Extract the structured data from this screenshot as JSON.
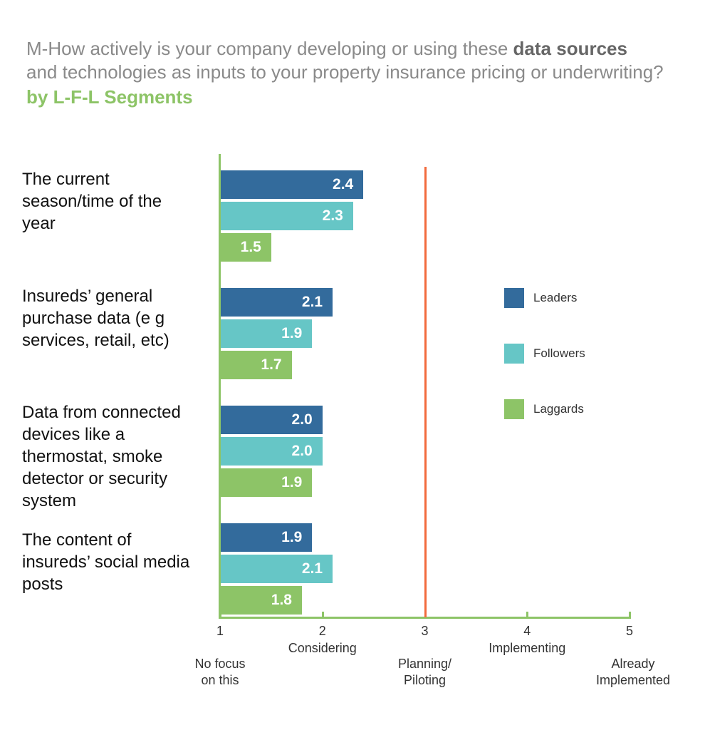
{
  "title": {
    "prefix": "M-How actively is your company developing or using these ",
    "emphasis": "data sources",
    "line2": "and technologies as inputs to your property insurance pricing or underwriting?",
    "subtitle": "by L-F-L Segments"
  },
  "colors": {
    "leaders": "#336b9c",
    "followers": "#66c6c6",
    "laggards": "#8dc467",
    "axis": "#8dc467",
    "reference": "#f26a3d",
    "subtitle": "#8dc467"
  },
  "chart_data": {
    "type": "bar",
    "orientation": "horizontal",
    "categories": [
      [
        "The current",
        "season/time of the",
        "year"
      ],
      [
        "Insureds’ general",
        "purchase data (e g",
        "services, retail, etc)"
      ],
      [
        "Data from connected",
        "devices like a",
        "thermostat, smoke",
        "detector or security",
        "system"
      ],
      [
        "The content of",
        "insureds’ social media",
        "posts"
      ]
    ],
    "series": [
      {
        "name": "Leaders",
        "values": [
          2.4,
          2.1,
          2.0,
          1.9
        ]
      },
      {
        "name": "Followers",
        "values": [
          2.3,
          1.9,
          2.0,
          2.1
        ]
      },
      {
        "name": "Laggards",
        "values": [
          1.5,
          1.7,
          1.9,
          1.8
        ]
      }
    ],
    "value_labels": [
      [
        "2.4",
        "2.1",
        "2.0",
        "1.9"
      ],
      [
        "2.3",
        "1.9",
        "2.0",
        "2.1"
      ],
      [
        "1.5",
        "1.7",
        "1.9",
        "1.8"
      ]
    ],
    "xlim": [
      1,
      5
    ],
    "ticks": [
      "1",
      "2",
      "3",
      "4",
      "5"
    ],
    "scale_labels": [
      {
        "value": 1,
        "lines": [
          "No focus",
          "on this"
        ]
      },
      {
        "value": 2,
        "lines": [
          "Considering"
        ]
      },
      {
        "value": 3,
        "lines": [
          "Planning/",
          "Piloting"
        ]
      },
      {
        "value": 4,
        "lines": [
          "Implementing"
        ]
      },
      {
        "value": 5,
        "lines": [
          "Already",
          "Implemented"
        ]
      }
    ],
    "reference_line": 3,
    "legend": [
      "Leaders",
      "Followers",
      "Laggards"
    ]
  }
}
